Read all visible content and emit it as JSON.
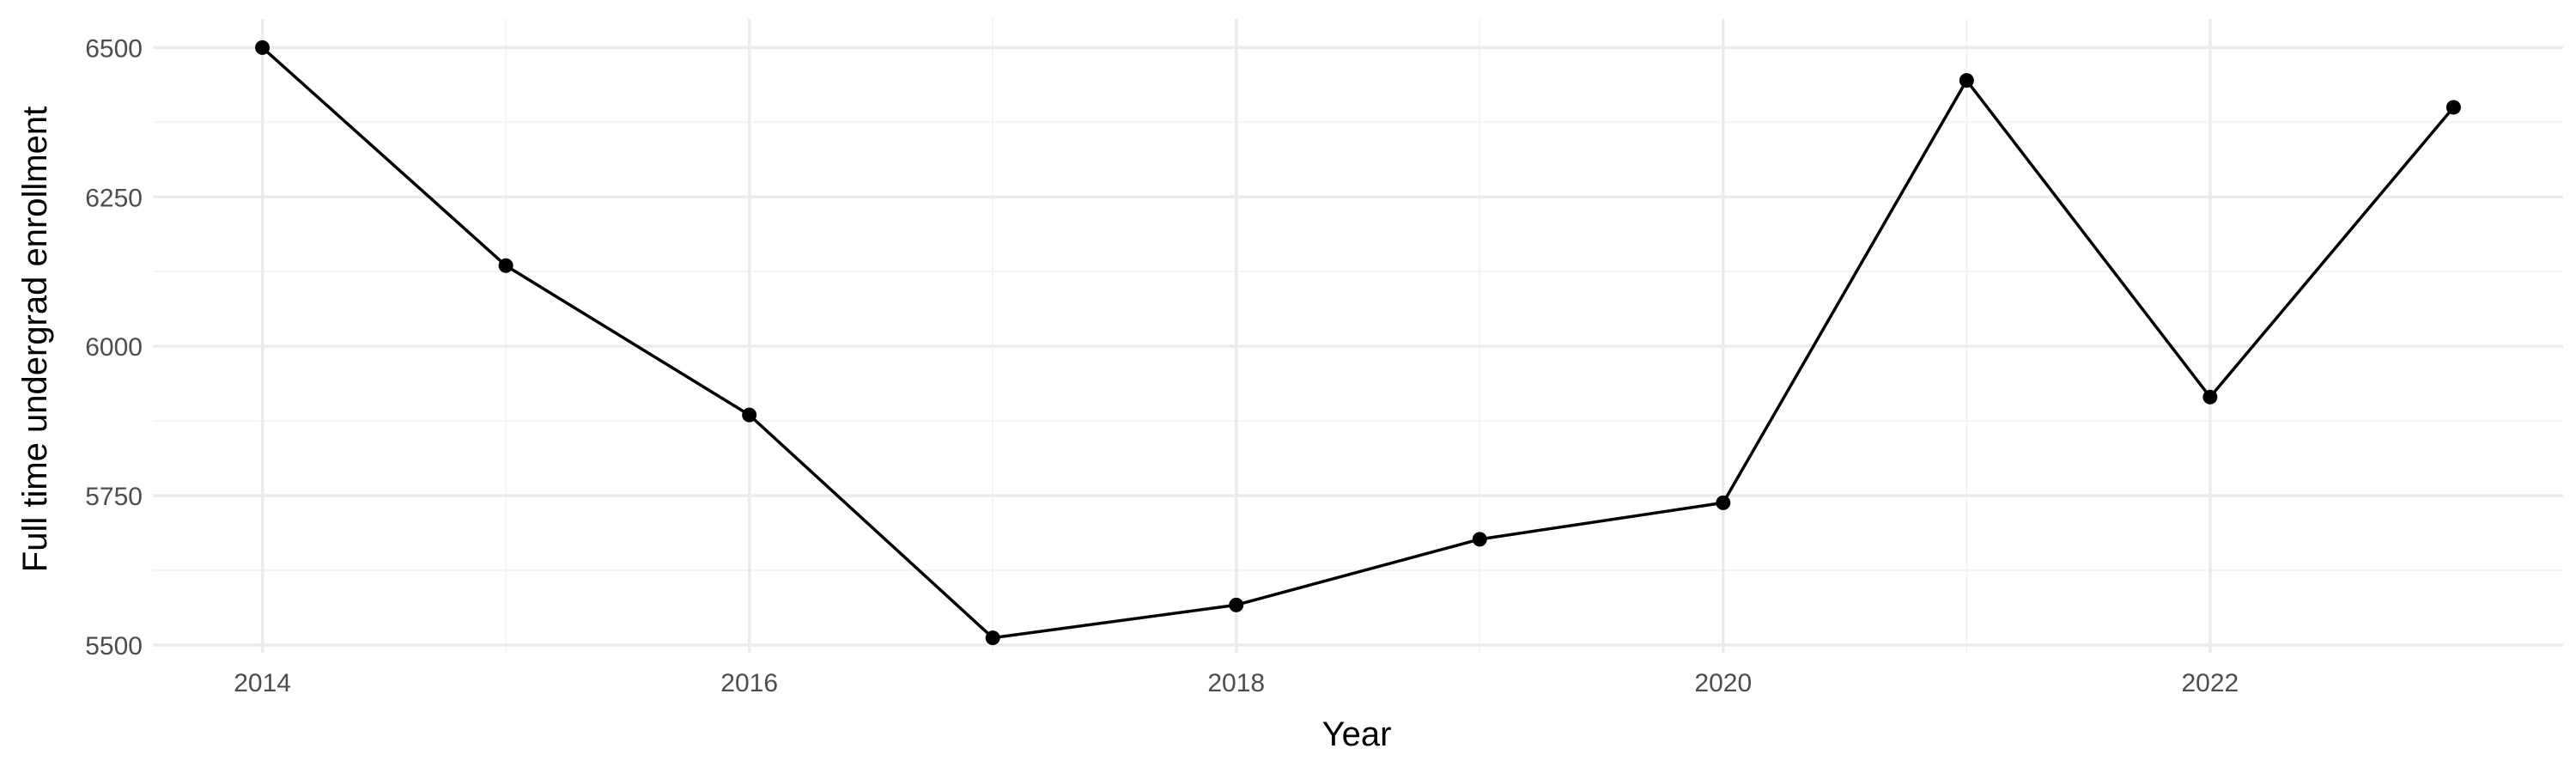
{
  "chart_data": {
    "type": "line",
    "title": "",
    "xlabel": "Year",
    "ylabel": "Full time undergrad enrollment",
    "x": [
      2014,
      2015,
      2016,
      2017,
      2018,
      2019,
      2020,
      2021,
      2022,
      2023
    ],
    "series": [
      {
        "values": [
          6500,
          6135,
          5885,
          5512,
          5567,
          5677,
          5738,
          6445,
          5915,
          6400
        ]
      }
    ],
    "xlim": [
      2013.55,
      2023.45
    ],
    "ylim": [
      5487,
      6548
    ],
    "x_ticks": [
      2014,
      2016,
      2018,
      2020,
      2022
    ],
    "x_tick_labels": [
      "2014",
      "2016",
      "2018",
      "2020",
      "2022"
    ],
    "y_ticks": [
      5500,
      5750,
      6000,
      6250,
      6500
    ],
    "y_tick_labels": [
      "5500",
      "5750",
      "6000",
      "6250",
      "6500"
    ],
    "grid": true,
    "legend": "none",
    "colors": {
      "line": "#000000",
      "point": "#000000",
      "grid_major": "#ebebeb",
      "grid_minor": "#f4f4f4",
      "tick_text": "#4d4d4d",
      "axis_title": "#000000"
    }
  }
}
